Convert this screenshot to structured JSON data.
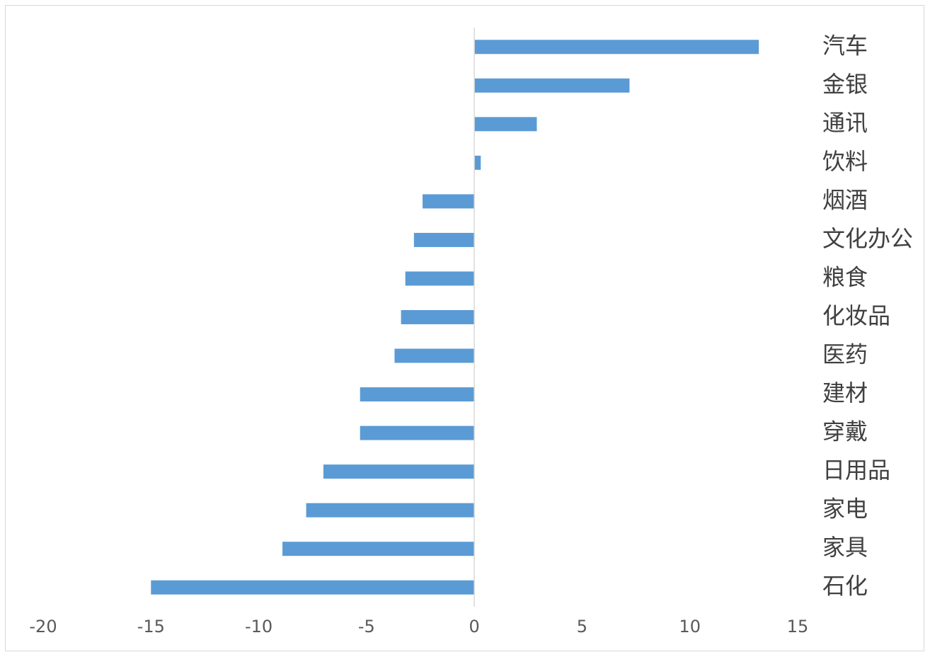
{
  "chart_data": {
    "type": "bar",
    "orientation": "horizontal",
    "title": "",
    "xlabel": "",
    "ylabel": "",
    "xlim": [
      -20,
      15
    ],
    "x_ticks": [
      -20,
      -15,
      -10,
      -5,
      0,
      5,
      10,
      15
    ],
    "x_tick_labels": [
      "-20",
      "-15",
      "-10",
      "-5",
      "0",
      "5",
      "10",
      "15"
    ],
    "grid": false,
    "legend": "none",
    "category_label_position": "right",
    "bar_color": "#5b9bd5",
    "axis_color": "#d9d9d9",
    "categories": [
      "汽车",
      "金银",
      "通讯",
      "饮料",
      "烟酒",
      "文化办公",
      "粮食",
      "化妆品",
      "医药",
      "建材",
      "穿戴",
      "日用品",
      "家电",
      "家具",
      "石化"
    ],
    "values": [
      13.2,
      7.2,
      2.9,
      0.3,
      -2.4,
      -2.8,
      -3.2,
      -3.4,
      -3.7,
      -5.3,
      -5.3,
      -7.0,
      -7.8,
      -8.9,
      -15.0
    ]
  }
}
